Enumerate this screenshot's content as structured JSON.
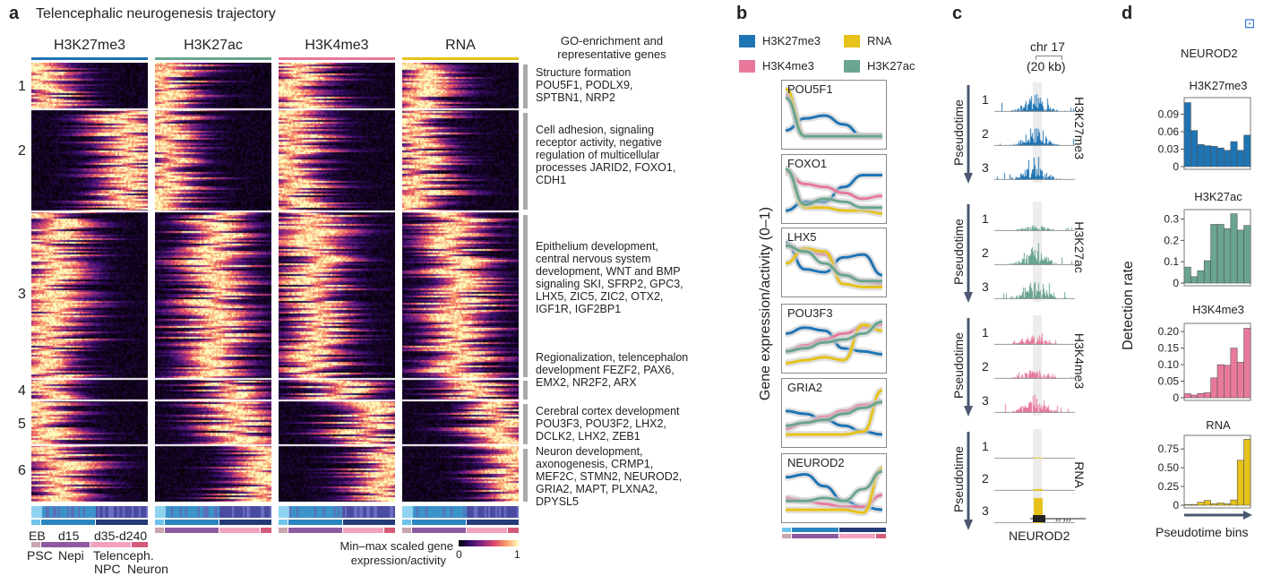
{
  "panel_a": {
    "label": "a",
    "title": "Telencephalic neurogenesis trajectory",
    "marks": [
      {
        "name": "H3K27me3",
        "color": "#1f74b4"
      },
      {
        "name": "H3K27ac",
        "color": "#6aa58f"
      },
      {
        "name": "H3K4me3",
        "color": "#e8799a"
      },
      {
        "name": "RNA",
        "color": "#e6c21a"
      }
    ],
    "clusters": [
      "1",
      "2",
      "3",
      "4",
      "5",
      "6"
    ],
    "go_header": "GO-enrichment and representative genes",
    "go_terms": [
      "Structure formation POU5F1, PODLX9, SPTBN1, NRP2",
      "Cell adhesion, signaling receptor activity, negative regulation of multicellular processes JARID2, FOXO1, CDH1",
      "Epithelium development, central nervous system development, WNT and BMP signaling SKI, SFRP2, GPC3, LHX5, ZIC5, ZIC2, OTX2, IGF1R, IGF2BP1",
      "Regionalization, telencephalon development FEZF2, PAX6, EMX2, NR2F2, ARX",
      "Cerebral cortex development POU3F3, POU3F2, LHX2, DCLK2, LHX2, ZEB1",
      "Neuron development, axonogenesis, CRMP1, MEF2C, STMN2, NEUROD2, GRIA2, MAPT, PLXNA2, DPYSL5"
    ],
    "stages": [
      "EB",
      "d15",
      "d35-d240"
    ],
    "cell_types": [
      "PSC",
      "Nepi",
      "Telenceph.",
      "NPC",
      "Neuron"
    ],
    "colorbar": {
      "label_line1": "Min–max scaled gene",
      "label_line2": "expression/activity",
      "min": "0",
      "max": "1",
      "colormap": "magma"
    }
  },
  "panel_b": {
    "label": "b",
    "ylabel": "Gene expression/activity (0–1)",
    "legend": [
      "H3K27me3",
      "RNA",
      "H3K4me3",
      "H3K27ac"
    ]
  },
  "panel_c": {
    "label": "c",
    "chrom": "chr 17",
    "scale": "(20 kb)",
    "axis_label": "Pseudotime",
    "gene": "NEUROD2",
    "tracks": [
      "H3K27me3",
      "H3K27ac",
      "H3K4me3",
      "RNA"
    ],
    "bins": [
      "1",
      "2",
      "3"
    ]
  },
  "panel_d": {
    "label": "d",
    "gene": "NEUROD2",
    "ylabel": "Detection rate",
    "xlabel": "Pseudotime bins"
  },
  "chart_data": [
    {
      "type": "line",
      "panel": "b",
      "x": [
        0,
        0.2,
        0.4,
        0.6,
        0.8,
        1
      ],
      "genes": [
        {
          "name": "POU5F1",
          "series": [
            {
              "name": "H3K27me3",
              "values": [
                0.25,
                0.45,
                0.5,
                0.35,
                0.15,
                0.15
              ]
            },
            {
              "name": "H3K4me3",
              "values": [
                0.85,
                0.15,
                0.15,
                0.15,
                0.15,
                0.15
              ]
            },
            {
              "name": "RNA",
              "values": [
                0.95,
                0.15,
                0.15,
                0.15,
                0.15,
                0.15
              ]
            },
            {
              "name": "H3K27ac",
              "values": [
                0.8,
                0.15,
                0.15,
                0.15,
                0.15,
                0.15
              ]
            }
          ]
        },
        {
          "name": "FOXO1",
          "series": [
            {
              "name": "H3K27me3",
              "values": [
                0.15,
                0.3,
                0.3,
                0.55,
                0.75,
                0.75
              ]
            },
            {
              "name": "H3K4me3",
              "values": [
                0.8,
                0.6,
                0.55,
                0.45,
                0.35,
                0.4
              ]
            },
            {
              "name": "RNA",
              "values": [
                0.85,
                0.2,
                0.2,
                0.15,
                0.15,
                0.1
              ]
            },
            {
              "name": "H3K27ac",
              "values": [
                0.85,
                0.25,
                0.35,
                0.3,
                0.2,
                0.2
              ]
            }
          ]
        },
        {
          "name": "LHX5",
          "series": [
            {
              "name": "H3K27me3",
              "values": [
                0.85,
                0.4,
                0.35,
                0.6,
                0.65,
                0.3
              ]
            },
            {
              "name": "H3K4me3",
              "values": [
                0.8,
                0.7,
                0.65,
                0.3,
                0.2,
                0.15
              ]
            },
            {
              "name": "RNA",
              "values": [
                0.5,
                0.75,
                0.7,
                0.15,
                0.1,
                0.1
              ]
            },
            {
              "name": "H3K27ac",
              "values": [
                0.8,
                0.7,
                0.5,
                0.3,
                0.2,
                0.2
              ]
            }
          ]
        },
        {
          "name": "POU3F3",
          "series": [
            {
              "name": "H3K27me3",
              "values": [
                0.6,
                0.7,
                0.65,
                0.35,
                0.3,
                0.25
              ]
            },
            {
              "name": "H3K4me3",
              "values": [
                0.3,
                0.4,
                0.5,
                0.6,
                0.7,
                0.75
              ]
            },
            {
              "name": "RNA",
              "values": [
                0.1,
                0.15,
                0.2,
                0.15,
                0.75,
                0.65
              ]
            },
            {
              "name": "H3K27ac",
              "values": [
                0.3,
                0.35,
                0.45,
                0.5,
                0.6,
                0.8
              ]
            }
          ]
        },
        {
          "name": "GRIA2",
          "series": [
            {
              "name": "H3K27me3",
              "values": [
                0.55,
                0.5,
                0.4,
                0.3,
                0.2,
                0.15
              ]
            },
            {
              "name": "H3K4me3",
              "values": [
                0.25,
                0.35,
                0.45,
                0.55,
                0.65,
                0.7
              ]
            },
            {
              "name": "RNA",
              "values": [
                0.15,
                0.15,
                0.15,
                0.15,
                0.2,
                0.9
              ]
            },
            {
              "name": "H3K27ac",
              "values": [
                0.3,
                0.35,
                0.4,
                0.5,
                0.6,
                0.7
              ]
            }
          ]
        },
        {
          "name": "NEUROD2",
          "series": [
            {
              "name": "H3K27me3",
              "values": [
                0.7,
                0.75,
                0.55,
                0.3,
                0.2,
                0.15
              ]
            },
            {
              "name": "H3K4me3",
              "values": [
                0.35,
                0.3,
                0.25,
                0.2,
                0.2,
                0.4
              ]
            },
            {
              "name": "RNA",
              "values": [
                0.15,
                0.15,
                0.15,
                0.15,
                0.1,
                0.85
              ]
            },
            {
              "name": "H3K27ac",
              "values": [
                0.3,
                0.3,
                0.35,
                0.3,
                0.5,
                0.8
              ]
            }
          ]
        }
      ]
    },
    {
      "type": "bar",
      "panel": "d",
      "title": "H3K27me3",
      "color": "#1f74b4",
      "categories": [
        1,
        2,
        3,
        4,
        5,
        6,
        7,
        8,
        9,
        10
      ],
      "values": [
        0.11,
        0.062,
        0.038,
        0.036,
        0.035,
        0.032,
        0.028,
        0.043,
        0.028,
        0.054
      ],
      "yticks": [
        "0",
        "0.03",
        "0.06",
        "0.09"
      ],
      "ytick_values": [
        0,
        0.03,
        0.06,
        0.09
      ],
      "ylim": [
        0,
        0.117
      ]
    },
    {
      "type": "bar",
      "panel": "d",
      "title": "H3K27ac",
      "color": "#6aa58f",
      "categories": [
        1,
        2,
        3,
        4,
        5,
        6,
        7,
        8,
        9,
        10
      ],
      "values": [
        0.075,
        0.03,
        0.058,
        0.105,
        0.275,
        0.275,
        0.255,
        0.325,
        0.248,
        0.27
      ],
      "yticks": [
        "0",
        "0.1",
        "0.2",
        "0.3"
      ],
      "ytick_values": [
        0,
        0.1,
        0.2,
        0.3
      ],
      "ylim": [
        0,
        0.34
      ]
    },
    {
      "type": "bar",
      "panel": "d",
      "title": "H3K4me3",
      "color": "#e8799a",
      "categories": [
        1,
        2,
        3,
        4,
        5,
        6,
        7,
        8,
        9,
        10
      ],
      "values": [
        0.012,
        0.008,
        0.013,
        0.015,
        0.06,
        0.1,
        0.098,
        0.15,
        0.107,
        0.21
      ],
      "yticks": [
        "0",
        "0.05",
        "0.10",
        "0.15",
        "0.20"
      ],
      "ytick_values": [
        0,
        0.05,
        0.1,
        0.15,
        0.2
      ],
      "ylim": [
        0,
        0.222
      ]
    },
    {
      "type": "bar",
      "panel": "d",
      "title": "RNA",
      "color": "#e6c21a",
      "categories": [
        1,
        2,
        3,
        4,
        5,
        6,
        7,
        8,
        9,
        10
      ],
      "values": [
        0.01,
        0.01,
        0.04,
        0.065,
        0.02,
        0.03,
        0.02,
        0.07,
        0.6,
        0.88
      ],
      "yticks": [
        "0",
        "0.25",
        "0.50",
        "0.75"
      ],
      "ytick_values": [
        0,
        0.25,
        0.5,
        0.75
      ],
      "ylim": [
        0,
        0.92
      ]
    }
  ]
}
